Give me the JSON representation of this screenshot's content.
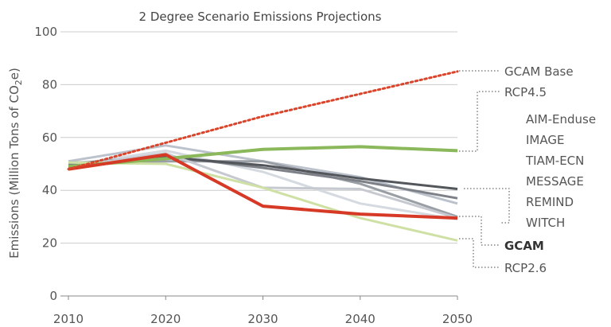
{
  "chart_data": {
    "type": "line",
    "title": "2 Degree Scenario Emissions Projections",
    "ylabel": "Emissions (Million Tons of CO2e)",
    "ylabel_parts": [
      "Emissions (Million Tons of CO",
      "2",
      "e)"
    ],
    "x": [
      2010,
      2020,
      2030,
      2040,
      2050
    ],
    "xlim": [
      2010,
      2050
    ],
    "ylim": [
      0,
      100
    ],
    "yticks": [
      0,
      20,
      40,
      60,
      80,
      100
    ],
    "grid": true,
    "series": [
      {
        "name": "GCAM Base",
        "color": "#d9442b",
        "style": "dotted",
        "width": 3,
        "values": [
          48,
          58,
          68,
          76.5,
          85
        ]
      },
      {
        "name": "RCP4.5",
        "color": "#8ab85a",
        "style": "solid",
        "width": 4,
        "values": [
          49,
          52,
          55.5,
          56.5,
          55
        ]
      },
      {
        "name": "AIM-Enduse",
        "color": "#bcc2cc",
        "style": "solid",
        "width": 3,
        "values": [
          51,
          57,
          51,
          45,
          35
        ]
      },
      {
        "name": "IMAGE",
        "color": "#d5d9e0",
        "style": "solid",
        "width": 3,
        "values": [
          49.5,
          55,
          47,
          35,
          29
        ]
      },
      {
        "name": "TIAM-ECN",
        "color": "#9a9ea5",
        "style": "solid",
        "width": 3,
        "values": [
          50.5,
          51,
          51,
          42.5,
          30
        ]
      },
      {
        "name": "MESSAGE",
        "color": "#7d8187",
        "style": "solid",
        "width": 3,
        "values": [
          50,
          53,
          48.5,
          43.5,
          37
        ]
      },
      {
        "name": "REMIND",
        "color": "#53575c",
        "style": "solid",
        "width": 3,
        "values": [
          48.5,
          52.5,
          49.5,
          44.5,
          40.5
        ]
      },
      {
        "name": "WITCH",
        "color": "#c6cad0",
        "style": "solid",
        "width": 3,
        "values": [
          49,
          54,
          41,
          40.5,
          29.5
        ]
      },
      {
        "name": "GCAM",
        "color": "#d63a26",
        "style": "solid",
        "width": 4,
        "values": [
          48,
          53.5,
          34,
          31,
          29.5
        ]
      },
      {
        "name": "RCP2.6",
        "color": "#cfe0a4",
        "style": "solid",
        "width": 3,
        "values": [
          50.5,
          50,
          41,
          29.5,
          21
        ]
      }
    ]
  }
}
